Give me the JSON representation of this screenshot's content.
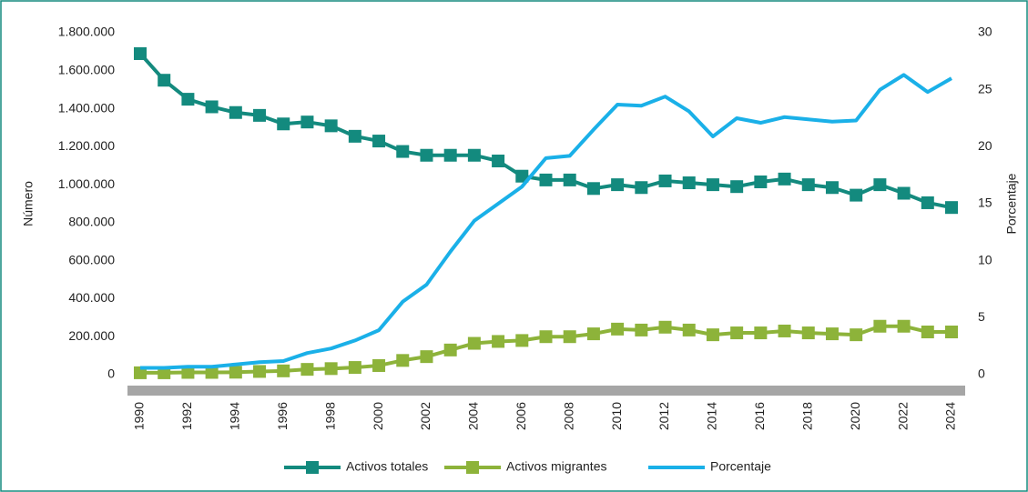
{
  "chart_data": {
    "type": "line",
    "x": [
      1990,
      1991,
      1992,
      1993,
      1994,
      1995,
      1996,
      1997,
      1998,
      1999,
      2000,
      2001,
      2002,
      2003,
      2004,
      2005,
      2006,
      2007,
      2008,
      2009,
      2010,
      2011,
      2012,
      2013,
      2014,
      2015,
      2016,
      2017,
      2018,
      2019,
      2020,
      2021,
      2022,
      2023,
      2024
    ],
    "xlim": [
      1990,
      2024
    ],
    "xticks": [
      1990,
      1992,
      1994,
      1996,
      1998,
      2000,
      2002,
      2004,
      2006,
      2008,
      2010,
      2012,
      2014,
      2016,
      2018,
      2020,
      2022,
      2024
    ],
    "ylabel": "Número",
    "y2label": "Porcentaje",
    "ylim": [
      0,
      1800000
    ],
    "yticks": [
      0,
      {
        "value": 200000,
        "label": "200.000"
      },
      {
        "value": 400000,
        "label": "400.000"
      },
      {
        "value": 600000,
        "label": "600.000"
      },
      {
        "value": 800000,
        "label": "800.000"
      },
      {
        "value": 1000000,
        "label": "1.000.000"
      },
      {
        "value": 1200000,
        "label": "1.200.000"
      },
      {
        "value": 1400000,
        "label": "1.400.000"
      },
      {
        "value": 1600000,
        "label": "1.600.000"
      },
      {
        "value": 1800000,
        "label": "1.800.000"
      }
    ],
    "y2lim": [
      0,
      30
    ],
    "y2ticks": [
      0,
      5,
      10,
      15,
      20,
      25,
      30
    ],
    "series": [
      {
        "name": "Activos totales",
        "color": "#138a7e",
        "marker": "square",
        "values": [
          1690000,
          1550000,
          1450000,
          1410000,
          1380000,
          1365000,
          1320000,
          1330000,
          1310000,
          1255000,
          1230000,
          1175000,
          1155000,
          1155000,
          1155000,
          1125000,
          1045000,
          1025000,
          1025000,
          980000,
          1000000,
          985000,
          1020000,
          1010000,
          1000000,
          990000,
          1015000,
          1030000,
          1000000,
          985000,
          945000,
          1000000,
          955000,
          905000,
          880000
        ]
      },
      {
        "name": "Activos migrantes",
        "color": "#8db33a",
        "marker": "square",
        "values": [
          10000,
          10000,
          12000,
          12000,
          13000,
          17000,
          20000,
          28000,
          32000,
          38000,
          48000,
          75000,
          95000,
          130000,
          165000,
          175000,
          180000,
          200000,
          200000,
          215000,
          240000,
          235000,
          250000,
          235000,
          210000,
          220000,
          220000,
          230000,
          220000,
          215000,
          210000,
          255000,
          255000,
          225000,
          225000
        ]
      },
      {
        "name": "Porcentaje",
        "color": "#1ab0e8",
        "axis": "y2",
        "values": [
          0.6,
          0.6,
          0.7,
          0.7,
          0.9,
          1.1,
          1.2,
          1.9,
          2.3,
          3.0,
          3.9,
          6.4,
          7.9,
          10.8,
          13.5,
          15.0,
          16.5,
          19.0,
          19.2,
          21.5,
          23.7,
          23.6,
          24.4,
          23.1,
          20.9,
          22.5,
          22.1,
          22.6,
          22.4,
          22.2,
          22.3,
          25.0,
          26.3,
          24.8,
          26.0
        ]
      }
    ]
  }
}
